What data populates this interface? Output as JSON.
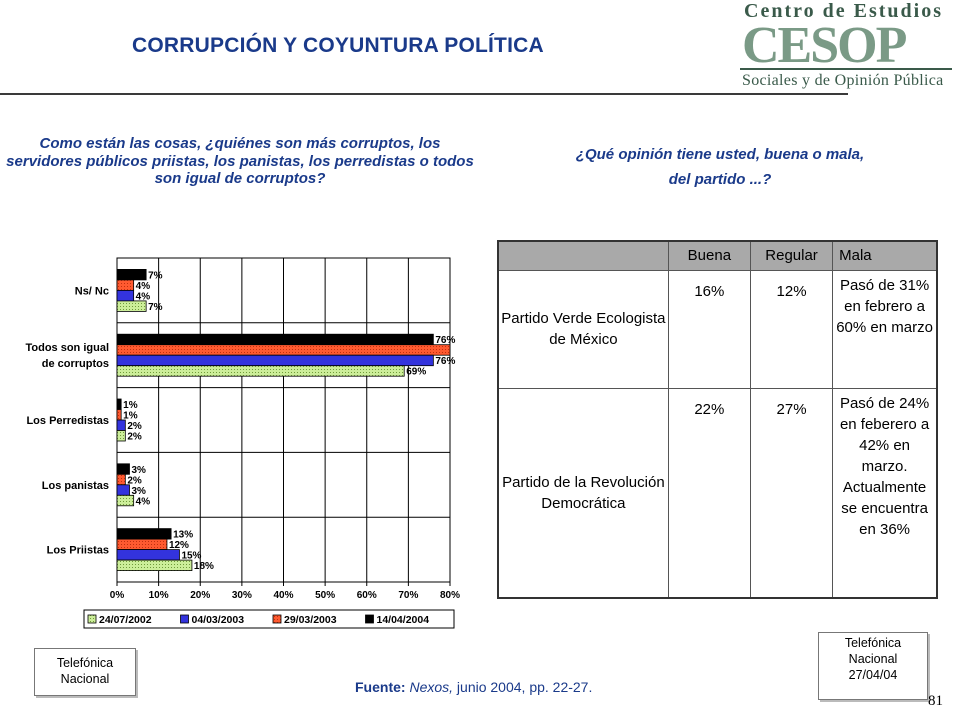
{
  "header": {
    "title": "CORRUPCIÓN Y COYUNTURA  POLÍTICA",
    "logo_line1": "Centro de Estudios",
    "logo_mark": "CESOP",
    "logo_line2": "Sociales y de Opinión Pública"
  },
  "question_left": "Como están las cosas, ¿quiénes son más corruptos, los servidores públicos priistas, los panistas, los perredistas o todos son igual de corruptos?",
  "question_right_line1": "¿Qué opinión tiene usted, buena o mala,",
  "question_right_line2": "del partido ...?",
  "chart_data": {
    "type": "bar",
    "orientation": "horizontal",
    "categories": [
      "Ns/ Nc",
      "Todos son igual de corruptos",
      "Los Perredistas",
      "Los panistas",
      "Los Priistas"
    ],
    "category_lines": [
      [
        "Ns/ Nc"
      ],
      [
        "Todos son igual",
        "de corruptos"
      ],
      [
        "Los Perredistas"
      ],
      [
        "Los panistas"
      ],
      [
        "Los Priistas"
      ]
    ],
    "series": [
      {
        "name": "14/04/2004",
        "color": "#000000",
        "values": [
          7,
          76,
          1,
          3,
          13
        ]
      },
      {
        "name": "29/03/2003",
        "color": "#ff4020",
        "values": [
          4,
          80,
          1,
          2,
          12
        ]
      },
      {
        "name": "04/03/2003",
        "color": "#3333dd",
        "values": [
          4,
          76,
          2,
          3,
          15
        ]
      },
      {
        "name": "24/07/2002",
        "color": "#ccee99",
        "values": [
          7,
          69,
          2,
          4,
          18
        ]
      }
    ],
    "value_labels": [
      [
        "7%",
        "4%",
        "4%",
        "7%"
      ],
      [
        "76%",
        "",
        "76%",
        "69%"
      ],
      [
        "1%",
        "1%",
        "2%",
        "2%"
      ],
      [
        "3%",
        "2%",
        "3%",
        "4%"
      ],
      [
        "13%",
        "12%",
        "15%",
        "18%"
      ]
    ],
    "legend_order": [
      "24/07/2002",
      "04/03/2003",
      "29/03/2003",
      "14/04/2004"
    ],
    "xlim": [
      0,
      80
    ],
    "xticks": [
      "0%",
      "10%",
      "20%",
      "30%",
      "40%",
      "50%",
      "60%",
      "70%",
      "80%"
    ],
    "grid": true,
    "legend_position": "bottom"
  },
  "opinion_table": {
    "headers": [
      "",
      "Buena",
      "Regular",
      "Mala"
    ],
    "rows": [
      {
        "party": "Partido Verde Ecologista de México",
        "buena": "16%",
        "regular": "12%",
        "mala": "Pasó de 31% en febrero a 60% en marzo"
      },
      {
        "party": "Partido de la Revolución Democrática",
        "buena": "22%",
        "regular": "27%",
        "mala": "Pasó de 24% en feberero a 42% en marzo. Actualmente se encuentra en 36%"
      }
    ]
  },
  "note_left": [
    "Telefónica",
    "Nacional"
  ],
  "note_right": [
    "Telefónica",
    "Nacional",
    "27/04/04"
  ],
  "source": {
    "label": "Fuente:",
    "publication": "Nexos,",
    "detail": "junio 2004, pp. 22-27."
  },
  "page_number": "81"
}
